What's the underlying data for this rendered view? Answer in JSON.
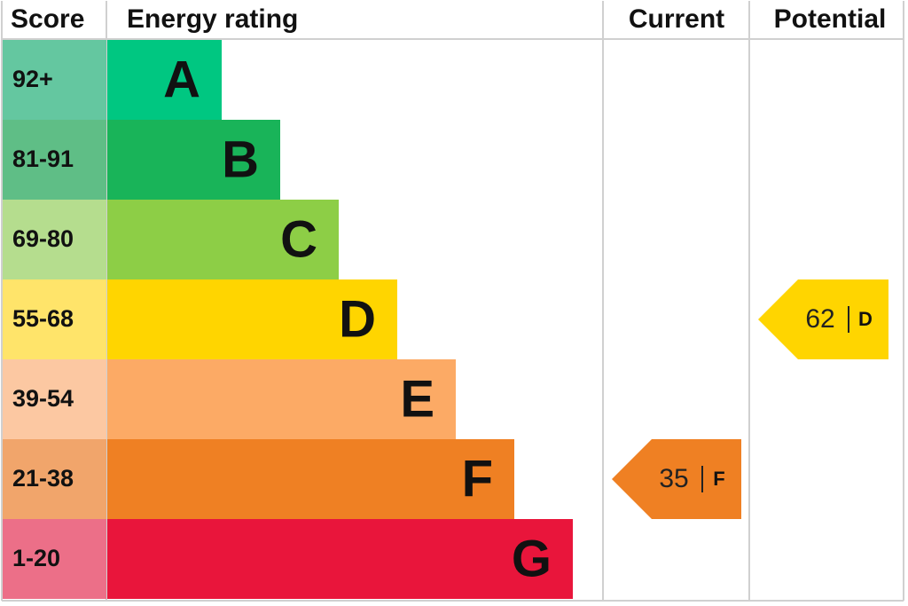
{
  "headers": {
    "score": "Score",
    "rating": "Energy rating",
    "current": "Current",
    "potential": "Potential"
  },
  "bands": [
    {
      "score": "92+",
      "rating": "A",
      "color": "#00c781",
      "score_color": "#64c7a0"
    },
    {
      "score": "81-91",
      "rating": "B",
      "color": "#19b459",
      "score_color": "#5fbe86"
    },
    {
      "score": "69-80",
      "rating": "C",
      "color": "#8dce46",
      "score_color": "#b5dd8e"
    },
    {
      "score": "55-68",
      "rating": "D",
      "color": "#ffd500",
      "score_color": "#ffe46a"
    },
    {
      "score": "39-54",
      "rating": "E",
      "color": "#fcaa65",
      "score_color": "#fcc8a2"
    },
    {
      "score": "21-38",
      "rating": "F",
      "color": "#ef8023",
      "score_color": "#f1a56b"
    },
    {
      "score": "1-20",
      "rating": "G",
      "color": "#e9153b",
      "score_color": "#ec6f88"
    }
  ],
  "current": {
    "value": 35,
    "rating": "F"
  },
  "potential": {
    "value": 62,
    "rating": "D"
  }
}
